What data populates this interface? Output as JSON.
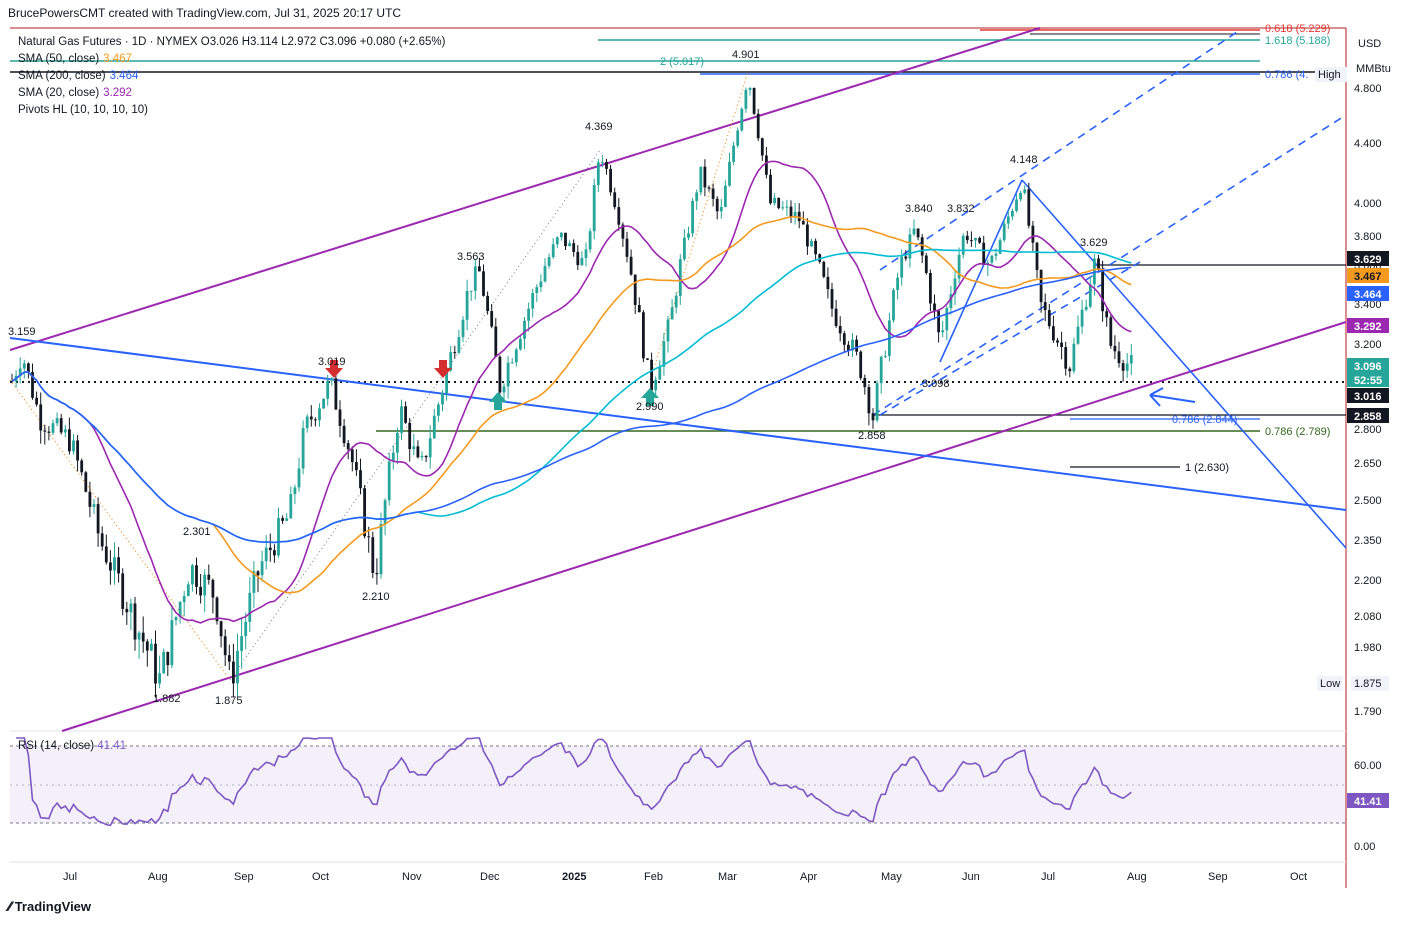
{
  "header": {
    "caption": "BrucePowersCMT created with TradingView.com, Jul 31, 2025 20:17 UTC",
    "symbol_line": "Natural Gas Futures · 1D · NYMEX  O3.026  H3.114  L2.972  C3.096  +0.080 (+2.65%)",
    "currency": "USD",
    "unit": "MMBtu"
  },
  "legend": [
    {
      "label": "SMA (50, close)",
      "value": "3.467",
      "color": "#f59a1e"
    },
    {
      "label": "SMA (200, close)",
      "value": "3.464",
      "color": "#2962ff"
    },
    {
      "label": "SMA (20, close)",
      "value": "3.292",
      "color": "#9c27b0"
    },
    {
      "label": "Pivots HL (10, 10, 10, 10)",
      "value": "",
      "color": ""
    }
  ],
  "rsi_legend": {
    "label": "RSI (14, close)",
    "value": "41.41",
    "color": "#7e57c2"
  },
  "footer": {
    "brand": "TradingView"
  },
  "chart_data": {
    "type": "candlestick",
    "price_axis": {
      "ticks": [
        "4.800",
        "4.400",
        "4.000",
        "3.800",
        "3.600",
        "3.400",
        "3.200",
        "2.800",
        "2.650",
        "2.500",
        "2.350",
        "2.200",
        "2.080",
        "1.980",
        "1.790"
      ]
    },
    "rsi_axis": {
      "ticks": [
        "60.00",
        "0.00"
      ]
    },
    "time_axis": [
      "Jul",
      "Aug",
      "Sep",
      "Oct",
      "Nov",
      "Dec",
      "2025",
      "Feb",
      "Mar",
      "Apr",
      "May",
      "Jun",
      "Jul",
      "Aug",
      "Sep",
      "Oct"
    ],
    "price_badges": [
      {
        "text": "3.629",
        "bg": "#131722",
        "fg": "#ffffff"
      },
      {
        "text": "3.467",
        "bg": "#f59a1e",
        "fg": "#131722"
      },
      {
        "text": "3.464",
        "bg": "#2962ff",
        "fg": "#ffffff"
      },
      {
        "text": "3.292",
        "bg": "#9c27b0",
        "fg": "#ffffff"
      },
      {
        "text": "3.096",
        "bg": "#26a69a",
        "fg": "#ffffff"
      },
      {
        "text": "52:55",
        "bg": "#26a69a",
        "fg": "#ffffff"
      },
      {
        "text": "3.016",
        "bg": "#131722",
        "fg": "#ffffff"
      },
      {
        "text": "2.858",
        "bg": "#131722",
        "fg": "#ffffff"
      }
    ],
    "rsi_badge": {
      "text": "41.41",
      "bg": "#7e57c2",
      "fg": "#ffffff"
    },
    "pivot_labels": [
      "3.159",
      "4.901",
      "4.369",
      "3.563",
      "3.019",
      "2.990",
      "2.301",
      "2.210",
      "1.882",
      "1.875",
      "3.840",
      "3.832",
      "4.148",
      "3.629",
      "3.098",
      "2.858"
    ],
    "fib_labels": [
      {
        "text": "2 (5.017)",
        "color": "#26a69a"
      },
      {
        "text": "1.618 (5.188)",
        "color": "#26a69a"
      },
      {
        "text": "0.618 (5.229)",
        "color": "#e53935"
      },
      {
        "text": "0.786 (4.",
        "color": "#2962ff"
      },
      {
        "text": "High",
        "color": "#131722"
      },
      {
        "text": "0.786 (2.844)",
        "color": "#2962ff"
      },
      {
        "text": "0.786 (2.789)",
        "color": "#33691e"
      },
      {
        "text": "1 (2.630)",
        "color": "#131722"
      },
      {
        "text": "Low",
        "color": "#131722"
      },
      {
        "text": "1.875",
        "color": "#131722"
      }
    ],
    "series": [
      {
        "name": "Natural Gas Futures",
        "ohlc_last": {
          "open": 3.026,
          "high": 3.114,
          "low": 2.972,
          "close": 3.096
        }
      },
      {
        "name": "SMA (20, close)",
        "last": 3.292
      },
      {
        "name": "SMA (50, close)",
        "last": 3.467
      },
      {
        "name": "SMA (200, close)",
        "last": 3.464
      },
      {
        "name": "RSI (14, close)",
        "last": 41.41
      }
    ],
    "colors": {
      "up": "#26a69a",
      "down": "#131722",
      "channel": "#9c27b0",
      "trend": "#2962ff",
      "sma_long_teal": "#00bcd4"
    }
  }
}
